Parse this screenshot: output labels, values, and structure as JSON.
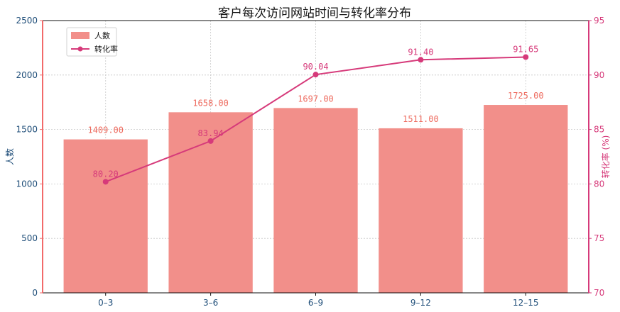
{
  "chart_data": {
    "type": "bar",
    "title": "客户每次访问网站时间与转化率分布",
    "xlabel": "",
    "ylabel": "人数",
    "y2label": "转化率 (%)",
    "categories": [
      "0–3",
      "3–6",
      "6–9",
      "9–12",
      "12–15"
    ],
    "series": [
      {
        "name": "人数",
        "type": "bar",
        "axis": "left",
        "values": [
          1409.0,
          1658.0,
          1697.0,
          1511.0,
          1725.0
        ],
        "labels": [
          "1409.00",
          "1658.00",
          "1697.00",
          "1511.00",
          "1725.00"
        ]
      },
      {
        "name": "转化率",
        "type": "line",
        "axis": "right",
        "values": [
          80.2,
          83.94,
          90.04,
          91.4,
          91.65
        ],
        "labels": [
          "80.20",
          "83.94",
          "90.04",
          "91.40",
          "91.65"
        ]
      }
    ],
    "ylim": [
      0,
      2500
    ],
    "y2lim": [
      70,
      95
    ],
    "yticks": [
      "0",
      "500",
      "1000",
      "1500",
      "2000",
      "2500"
    ],
    "y2ticks": [
      "70",
      "75",
      "80",
      "85",
      "90",
      "95"
    ],
    "grid": true,
    "legend_position": "upper-left",
    "colors": {
      "bar": "#f28f8a",
      "bar_label": "#ee6b5f",
      "line": "#d63a7a",
      "left_axis_text": "#1f4e79",
      "left_spine": "#f26a6a",
      "right_axis": "#d63a7a",
      "grid": "#c8c8c8"
    }
  }
}
